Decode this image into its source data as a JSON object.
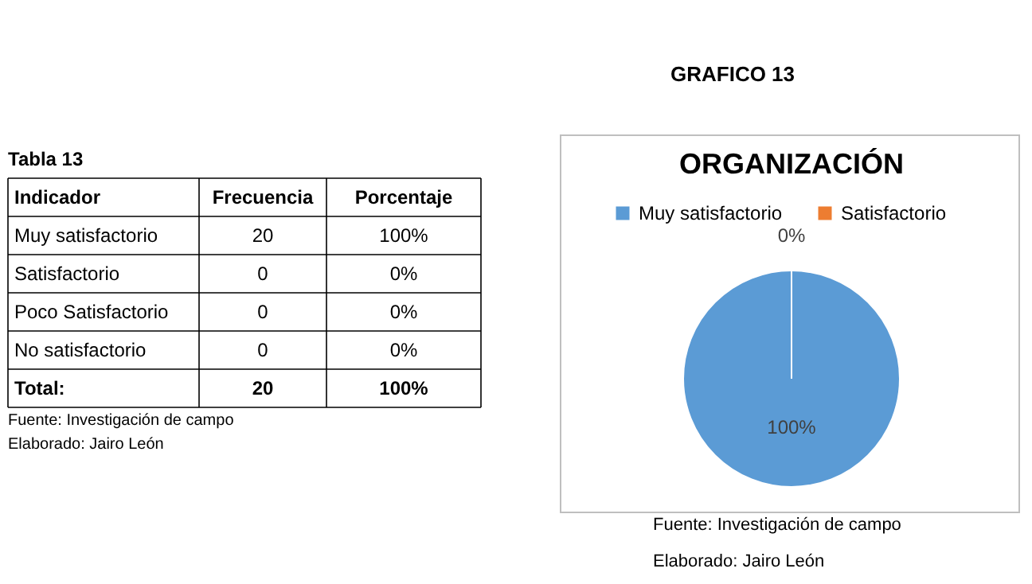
{
  "chart_data": [
    {
      "type": "other",
      "title": "Tabla 13",
      "annotations": [
        "Indicador",
        "Frecuencia",
        "Porcentaje",
        "Muy satisfactorio",
        "20",
        "100%",
        "Satisfactorio",
        "0",
        "0%",
        "Poco Satisfactorio",
        "0",
        "0%",
        "No satisfactorio",
        "0",
        "0%",
        "Total:",
        "20",
        "100%",
        "Fuente: Investigación de campo",
        "Elaborado: Jairo León"
      ]
    },
    {
      "type": "pie",
      "title": "ORGANIZACIÓN",
      "categories": [
        "Muy satisfactorio",
        "Satisfactorio"
      ],
      "values": [
        100,
        0
      ],
      "colors": [
        "#5b9bd5",
        "#ed7d31"
      ],
      "value_labels": [
        "100%",
        "0%"
      ],
      "legend": "top",
      "annotations": [
        "GRAFICO 13",
        "Fuente: Investigación de campo",
        "Elaborado: Jairo León"
      ]
    }
  ]
}
